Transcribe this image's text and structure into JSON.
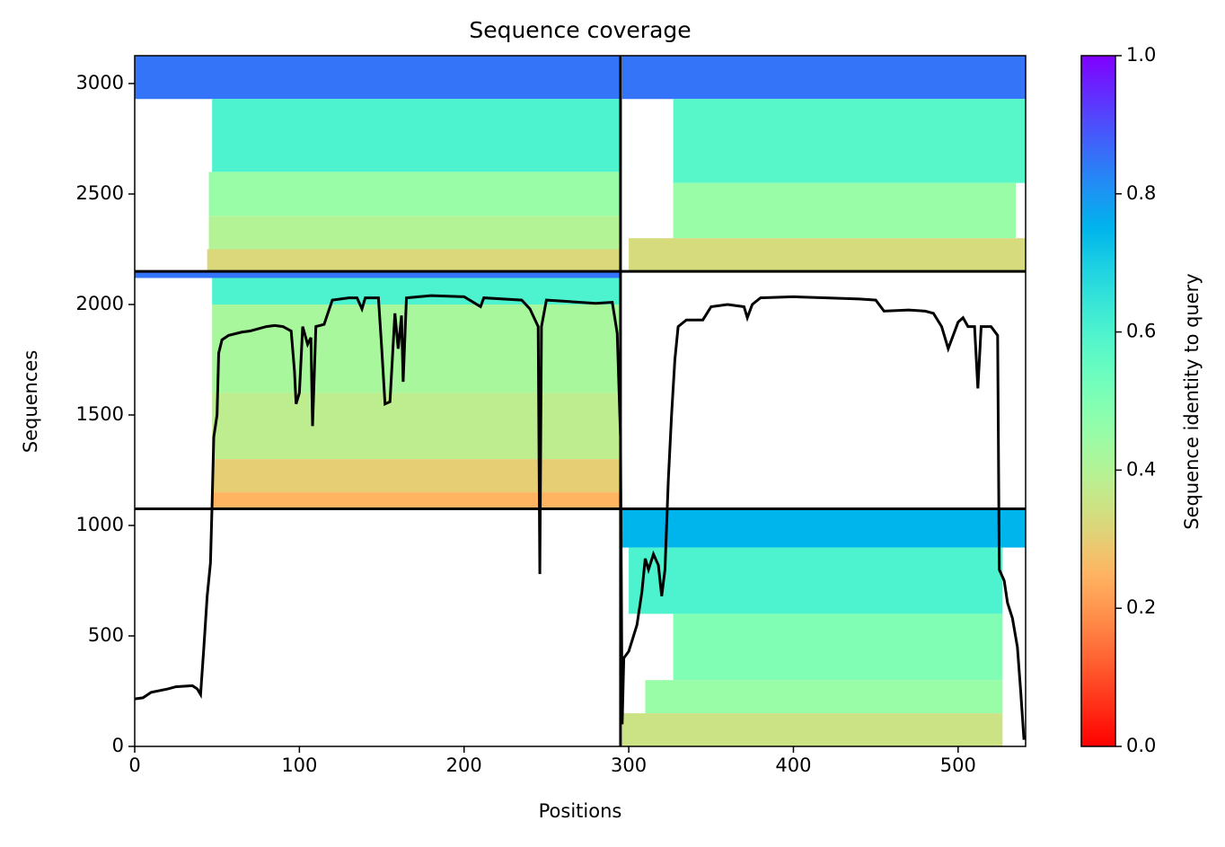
{
  "chart_data": {
    "type": "heatmap",
    "title": "Sequence coverage",
    "xlabel": "Positions",
    "ylabel": "Sequences",
    "colorbar_label": "Sequence identity to query",
    "colormap": "rainbow",
    "clim": [
      0,
      1
    ],
    "cticks": [
      {
        "value": 0,
        "label": "0.0"
      },
      {
        "value": 0.2,
        "label": "0.2"
      },
      {
        "value": 0.4,
        "label": "0.4"
      },
      {
        "value": 0.6,
        "label": "0.6"
      },
      {
        "value": 0.8,
        "label": "0.8"
      },
      {
        "value": 1,
        "label": "1.0"
      }
    ],
    "xlim": [
      0,
      541
    ],
    "ylim": [
      0,
      3126
    ],
    "xticks": [
      0,
      100,
      200,
      300,
      400,
      500
    ],
    "yticks": [
      0,
      500,
      1000,
      1500,
      2000,
      2500,
      3000
    ],
    "boundaries": {
      "x": [
        295
      ],
      "y": [
        1075,
        2150
      ]
    },
    "bands": [
      {
        "rows": [
          2930,
          3126
        ],
        "start": 0,
        "end": 295,
        "identity": 0.85
      },
      {
        "rows": [
          2600,
          2930
        ],
        "start": 47,
        "end": 295,
        "identity": 0.6
      },
      {
        "rows": [
          2400,
          2600
        ],
        "start": 45,
        "end": 295,
        "identity": 0.45
      },
      {
        "rows": [
          2250,
          2400
        ],
        "start": 45,
        "end": 295,
        "identity": 0.4
      },
      {
        "rows": [
          2150,
          2250
        ],
        "start": 44,
        "end": 295,
        "identity": 0.32
      },
      {
        "rows": [
          2930,
          3126
        ],
        "start": 296,
        "end": 541,
        "identity": 0.85
      },
      {
        "rows": [
          2550,
          2930
        ],
        "start": 327,
        "end": 541,
        "identity": 0.58
      },
      {
        "rows": [
          2300,
          2550
        ],
        "start": 327,
        "end": 535,
        "identity": 0.45
      },
      {
        "rows": [
          2150,
          2300
        ],
        "start": 300,
        "end": 541,
        "identity": 0.33
      },
      {
        "rows": [
          2120,
          2150
        ],
        "start": 0,
        "end": 295,
        "identity": 0.85
      },
      {
        "rows": [
          2000,
          2120
        ],
        "start": 47,
        "end": 295,
        "identity": 0.6
      },
      {
        "rows": [
          1600,
          2000
        ],
        "start": 47,
        "end": 295,
        "identity": 0.42
      },
      {
        "rows": [
          1300,
          1600
        ],
        "start": 47,
        "end": 295,
        "identity": 0.38
      },
      {
        "rows": [
          1150,
          1300
        ],
        "start": 47,
        "end": 295,
        "identity": 0.3
      },
      {
        "rows": [
          1075,
          1150
        ],
        "start": 47,
        "end": 295,
        "identity": 0.25
      },
      {
        "rows": [
          900,
          1075
        ],
        "start": 296,
        "end": 541,
        "identity": 0.75
      },
      {
        "rows": [
          600,
          900
        ],
        "start": 300,
        "end": 527,
        "identity": 0.6
      },
      {
        "rows": [
          300,
          600
        ],
        "start": 327,
        "end": 527,
        "identity": 0.5
      },
      {
        "rows": [
          150,
          300
        ],
        "start": 310,
        "end": 527,
        "identity": 0.45
      },
      {
        "rows": [
          0,
          150
        ],
        "start": 296,
        "end": 527,
        "identity": 0.35
      }
    ],
    "coverage": {
      "x": [
        0,
        5,
        10,
        20,
        25,
        35,
        38,
        40,
        42,
        44,
        46,
        47,
        48,
        50,
        51,
        53,
        57,
        65,
        70,
        75,
        80,
        85,
        90,
        95,
        97,
        98,
        100,
        102,
        105,
        107,
        108,
        110,
        115,
        120,
        130,
        135,
        138,
        140,
        148,
        150,
        152,
        155,
        158,
        160,
        162,
        163,
        165,
        180,
        200,
        210,
        212,
        235,
        240,
        245,
        246,
        247,
        250,
        260,
        280,
        290,
        293,
        295,
        296,
        297,
        300,
        305,
        308,
        310,
        312,
        315,
        318,
        320,
        322,
        324,
        326,
        328,
        330,
        335,
        345,
        350,
        360,
        370,
        372,
        375,
        380,
        400,
        420,
        440,
        450,
        455,
        470,
        480,
        485,
        490,
        494,
        500,
        503,
        506,
        510,
        512,
        514,
        520,
        524,
        525,
        528,
        530,
        533,
        536,
        538,
        540
      ],
      "values": [
        215,
        220,
        245,
        260,
        270,
        275,
        260,
        235,
        450,
        680,
        830,
        1100,
        1400,
        1500,
        1780,
        1840,
        1860,
        1875,
        1880,
        1890,
        1900,
        1905,
        1900,
        1880,
        1700,
        1550,
        1600,
        1900,
        1820,
        1850,
        1450,
        1900,
        1910,
        2020,
        2030,
        2030,
        1980,
        2030,
        2030,
        1800,
        1550,
        1560,
        1960,
        1800,
        1950,
        1650,
        2030,
        2040,
        2035,
        1990,
        2030,
        2020,
        1980,
        1900,
        780,
        1900,
        2020,
        2015,
        2005,
        2010,
        1870,
        1400,
        100,
        400,
        430,
        550,
        700,
        850,
        800,
        870,
        820,
        680,
        800,
        1200,
        1500,
        1750,
        1900,
        1930,
        1930,
        1990,
        2000,
        1990,
        1940,
        2000,
        2030,
        2035,
        2030,
        2025,
        2020,
        1970,
        1975,
        1970,
        1960,
        1900,
        1800,
        1920,
        1940,
        1900,
        1900,
        1620,
        1900,
        1900,
        1860,
        800,
        750,
        650,
        580,
        450,
        250,
        30
      ]
    }
  }
}
